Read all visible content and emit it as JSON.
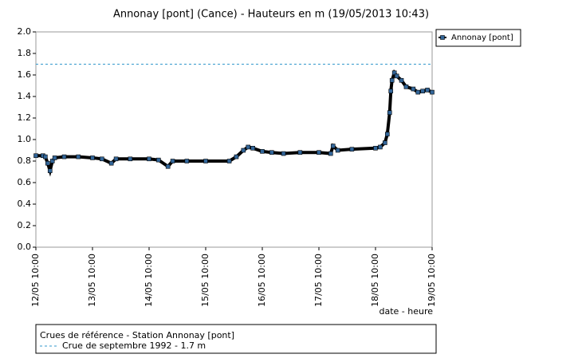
{
  "chart_data": {
    "type": "line",
    "title": "Annonay [pont] (Cance) - Hauteurs en m (19/05/2013 10:43)",
    "x_label": "date - heure",
    "x": [
      "12/05 10:00",
      "12/05 13:00",
      "12/05 14:00",
      "12/05 15:00",
      "12/05 16:00",
      "12/05 17:00",
      "12/05 18:00",
      "12/05 22:00",
      "13/05 04:00",
      "13/05 10:00",
      "13/05 14:00",
      "13/05 18:00",
      "13/05 20:00",
      "14/05 02:00",
      "14/05 10:00",
      "14/05 14:00",
      "14/05 18:00",
      "14/05 20:00",
      "15/05 02:00",
      "15/05 10:00",
      "15/05 20:00",
      "15/05 23:00",
      "16/05 02:00",
      "16/05 04:00",
      "16/05 06:00",
      "16/05 10:00",
      "16/05 14:00",
      "16/05 19:00",
      "17/05 02:00",
      "17/05 10:00",
      "17/05 15:00",
      "17/05 16:00",
      "17/05 18:00",
      "18/05 00:00",
      "18/05 10:00",
      "18/05 12:00",
      "18/05 14:00",
      "18/05 15:00",
      "18/05 16:00",
      "18/05 16:30",
      "18/05 17:00",
      "18/05 18:00",
      "18/05 19:00",
      "18/05 21:00",
      "18/05 23:00",
      "19/05 02:00",
      "19/05 04:00",
      "19/05 06:00",
      "19/05 08:00",
      "19/05 10:00"
    ],
    "series": [
      {
        "name": "Annonay [pont]",
        "color": "#336699",
        "line_color": "#000000",
        "values": [
          0.85,
          0.85,
          0.84,
          0.78,
          0.71,
          0.8,
          0.83,
          0.84,
          0.84,
          0.83,
          0.82,
          0.78,
          0.82,
          0.82,
          0.82,
          0.81,
          0.75,
          0.8,
          0.8,
          0.8,
          0.8,
          0.84,
          0.9,
          0.93,
          0.92,
          0.89,
          0.88,
          0.87,
          0.88,
          0.88,
          0.87,
          0.94,
          0.9,
          0.91,
          0.92,
          0.93,
          0.97,
          1.05,
          1.25,
          1.45,
          1.55,
          1.62,
          1.59,
          1.55,
          1.49,
          1.47,
          1.44,
          1.45,
          1.46,
          1.44
        ]
      }
    ],
    "xlim": [
      "12/05 10:00",
      "19/05 10:00"
    ],
    "xticks": [
      "12/05 10:00",
      "13/05 10:00",
      "14/05 10:00",
      "15/05 10:00",
      "16/05 10:00",
      "17/05 10:00",
      "18/05 10:00",
      "19/05 10:00"
    ],
    "ylim": [
      0,
      2
    ],
    "yticks": [
      {
        "value": 0,
        "label": "0.0"
      },
      {
        "value": 0.2,
        "label": "0.2"
      },
      {
        "value": 0.4,
        "label": "0.4"
      },
      {
        "value": 0.6,
        "label": "0.6"
      },
      {
        "value": 0.8,
        "label": "0.8"
      },
      {
        "value": 1,
        "label": "1.0"
      },
      {
        "value": 1.2,
        "label": "1.2"
      },
      {
        "value": 1.4,
        "label": "1.4"
      },
      {
        "value": 1.6,
        "label": "1.6"
      },
      {
        "value": 1.8,
        "label": "1.8"
      },
      {
        "value": 2,
        "label": "2.0"
      }
    ],
    "grid": false,
    "legend": "top-right",
    "reference_title": "Crues de référence - Station Annonay [pont]",
    "reference_lines": [
      {
        "name": "Crue de septembre 1992 - 1.7 m",
        "value": 1.7,
        "color": "#3399cc"
      }
    ]
  }
}
